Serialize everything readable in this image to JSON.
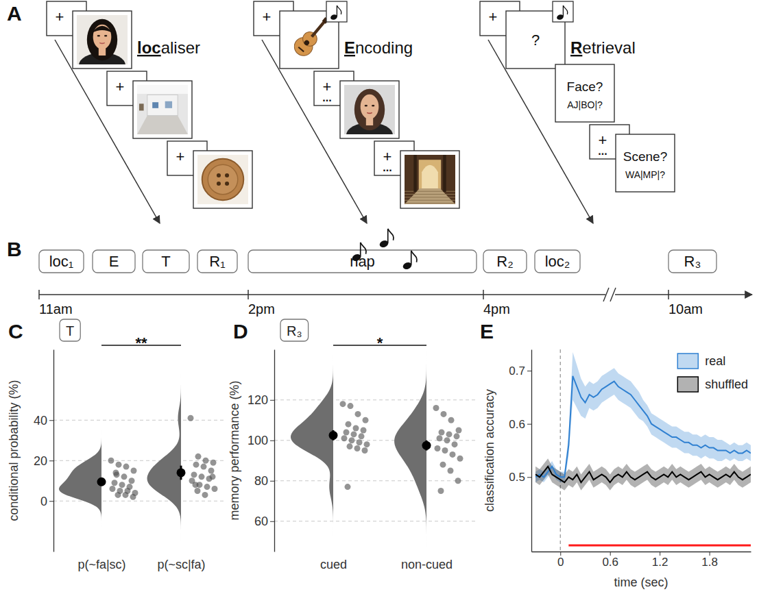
{
  "panel_a": {
    "letter": "A",
    "sequences": [
      {
        "label": [
          {
            "text": "loc",
            "emphasis": true
          },
          {
            "text": "aliser"
          }
        ],
        "cards": [
          {
            "fixation": true,
            "text": "+"
          },
          {
            "picture": true
          },
          {
            "fixation": true,
            "text": "+"
          },
          {
            "picture": true
          },
          {
            "fixation": true,
            "text": "+"
          },
          {
            "picture": true
          }
        ]
      },
      {
        "label": [
          {
            "text": "E",
            "emphasis": true
          },
          {
            "text": "ncoding"
          }
        ],
        "cards": [
          {
            "fixation": true,
            "text": "+"
          },
          {
            "picture": true,
            "cue": true
          },
          {
            "fixation": true,
            "text": "+",
            "sub": "..."
          },
          {
            "picture": true
          },
          {
            "fixation": true,
            "text": "+",
            "sub": "..."
          },
          {
            "picture": true
          }
        ]
      },
      {
        "label": [
          {
            "text": "R",
            "emphasis": true
          },
          {
            "text": "etrieval"
          }
        ],
        "cards": [
          {
            "fixation": true,
            "text": "+"
          },
          {
            "text": "?",
            "cue": true
          },
          {
            "text": "Face?",
            "sub": "AJ|BO|?"
          },
          {
            "fixation": true,
            "text": "+",
            "sub": "..."
          },
          {
            "text": "Scene?",
            "sub": "WA|MP|?"
          }
        ]
      }
    ]
  },
  "panel_b": {
    "letter": "B",
    "sessions": [
      "loc₁",
      "E",
      "T",
      "R₁",
      "nap",
      "R₂",
      "loc₂",
      "R₃"
    ],
    "times": [
      "11am",
      "2pm",
      "4pm",
      "10am"
    ]
  },
  "chart_data": [
    {
      "type": "violin",
      "panel_label": "C",
      "title": "T",
      "y_label": "conditional probability (%)",
      "categories": [
        "p(~fa|sc)",
        "p(~sc|fa)"
      ],
      "points": [
        [
          20,
          18,
          17,
          15,
          13,
          12,
          10,
          9,
          8,
          7,
          6,
          5,
          5,
          4,
          3,
          3,
          2,
          14
        ],
        [
          41,
          22,
          20,
          19,
          18,
          17,
          15,
          13,
          12,
          11,
          10,
          8,
          7,
          6,
          5,
          3,
          12,
          8
        ]
      ],
      "mean": [
        9.5,
        14
      ],
      "error": [
        2,
        3.5
      ],
      "color": "#6e6e6e",
      "ylim": [
        -25,
        75
      ],
      "yticks": [
        0,
        20,
        40
      ],
      "grid": true,
      "annotations": [
        {
          "text": "**"
        }
      ]
    },
    {
      "type": "violin",
      "panel_label": "D",
      "title": "R₃",
      "y_label": "memory performance (%)",
      "categories": [
        "cued",
        "non-cued"
      ],
      "points": [
        [
          118,
          117,
          113,
          110,
          108,
          106,
          105,
          104,
          103,
          102,
          101,
          100,
          99,
          98,
          97,
          96,
          95,
          77
        ],
        [
          116,
          113,
          110,
          105,
          104,
          103,
          102,
          101,
          100,
          98,
          96,
          95,
          93,
          91,
          88,
          85,
          80,
          75
        ]
      ],
      "mean": [
        102.5,
        97.5
      ],
      "error": [
        2.5,
        2.5
      ],
      "color": "#6e6e6e",
      "ylim": [
        45,
        145
      ],
      "yticks": [
        60,
        80,
        100,
        120
      ],
      "grid": true,
      "annotations": [
        {
          "text": "*"
        }
      ]
    },
    {
      "type": "line",
      "panel_label": "E",
      "x_label": "time (sec)",
      "y_label": "classification accuracy",
      "x": [
        -0.3,
        -0.25,
        -0.2,
        -0.15,
        -0.1,
        -0.05,
        0,
        0.05,
        0.1,
        0.15,
        0.2,
        0.25,
        0.3,
        0.35,
        0.4,
        0.45,
        0.5,
        0.55,
        0.6,
        0.65,
        0.7,
        0.75,
        0.8,
        0.85,
        0.9,
        0.95,
        1.0,
        1.05,
        1.1,
        1.15,
        1.2,
        1.25,
        1.3,
        1.35,
        1.4,
        1.45,
        1.5,
        1.55,
        1.6,
        1.65,
        1.7,
        1.75,
        1.8,
        1.85,
        1.9,
        1.95,
        2.0,
        2.05,
        2.1,
        2.15,
        2.2,
        2.25,
        2.3
      ],
      "series": [
        {
          "name": "real",
          "color": "#2f80d1",
          "values": [
            0.5,
            0.505,
            0.5,
            0.51,
            0.52,
            0.505,
            0.5,
            0.5,
            0.56,
            0.69,
            0.67,
            0.65,
            0.64,
            0.655,
            0.65,
            0.655,
            0.665,
            0.67,
            0.675,
            0.68,
            0.67,
            0.665,
            0.66,
            0.655,
            0.645,
            0.635,
            0.625,
            0.615,
            0.6,
            0.595,
            0.59,
            0.585,
            0.58,
            0.575,
            0.575,
            0.57,
            0.565,
            0.565,
            0.56,
            0.56,
            0.555,
            0.56,
            0.555,
            0.555,
            0.55,
            0.55,
            0.55,
            0.545,
            0.55,
            0.545,
            0.545,
            0.55,
            0.545
          ],
          "error": [
            0.01,
            0.01,
            0.01,
            0.01,
            0.01,
            0.01,
            0.01,
            0.01,
            0.02,
            0.045,
            0.04,
            0.035,
            0.03,
            0.025,
            0.025,
            0.025,
            0.025,
            0.025,
            0.025,
            0.025,
            0.025,
            0.025,
            0.025,
            0.025,
            0.025,
            0.025,
            0.02,
            0.02,
            0.02,
            0.02,
            0.02,
            0.02,
            0.02,
            0.02,
            0.02,
            0.02,
            0.02,
            0.02,
            0.02,
            0.02,
            0.02,
            0.02,
            0.02,
            0.02,
            0.02,
            0.02,
            0.015,
            0.015,
            0.015,
            0.015,
            0.015,
            0.015,
            0.015
          ]
        },
        {
          "name": "shuffled",
          "color": "#000000",
          "values": [
            0.505,
            0.5,
            0.51,
            0.52,
            0.505,
            0.5,
            0.495,
            0.49,
            0.5,
            0.495,
            0.505,
            0.49,
            0.5,
            0.51,
            0.495,
            0.5,
            0.505,
            0.5,
            0.49,
            0.5,
            0.505,
            0.5,
            0.51,
            0.5,
            0.495,
            0.5,
            0.505,
            0.51,
            0.5,
            0.495,
            0.5,
            0.505,
            0.5,
            0.51,
            0.5,
            0.505,
            0.5,
            0.495,
            0.5,
            0.505,
            0.51,
            0.5,
            0.505,
            0.5,
            0.495,
            0.5,
            0.505,
            0.5,
            0.51,
            0.5,
            0.495,
            0.5,
            0.505
          ],
          "error": [
            0.015,
            0.015,
            0.015,
            0.015,
            0.015,
            0.015,
            0.015,
            0.015,
            0.015,
            0.015,
            0.015,
            0.015,
            0.015,
            0.015,
            0.015,
            0.015,
            0.015,
            0.015,
            0.015,
            0.015,
            0.015,
            0.015,
            0.015,
            0.015,
            0.015,
            0.015,
            0.015,
            0.015,
            0.015,
            0.015,
            0.015,
            0.015,
            0.015,
            0.015,
            0.015,
            0.015,
            0.015,
            0.015,
            0.015,
            0.015,
            0.015,
            0.015,
            0.015,
            0.015,
            0.015,
            0.015,
            0.015,
            0.015,
            0.015,
            0.015,
            0.015,
            0.015,
            0.015
          ]
        }
      ],
      "xlim": [
        -0.35,
        2.3
      ],
      "ylim": [
        0.36,
        0.74
      ],
      "xticks": [
        0,
        0.6,
        1.2,
        1.8
      ],
      "yticks": [
        0.5,
        0.6,
        0.7
      ],
      "legend": "upper right",
      "stimulus_onset": 0,
      "significant_interval": [
        0.1,
        2.3
      ]
    }
  ]
}
